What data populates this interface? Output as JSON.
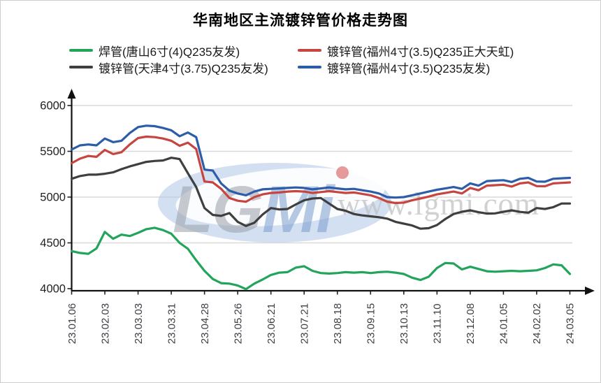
{
  "title": "华南地区主流镀锌管价格走势图",
  "watermark": {
    "logo": "LGMi",
    "url": "www.lgmi.com"
  },
  "axis": {
    "y_ticks": [
      4000,
      4500,
      5000,
      5500,
      6000
    ],
    "x_labels": [
      "23.01.06",
      "23.02.03",
      "23.03.03",
      "23.03.31",
      "23.04.28",
      "23.05.26",
      "23.06.21",
      "23.07.21",
      "23.08.18",
      "23.09.15",
      "23.10.13",
      "23.11.10",
      "23.12.08",
      "24.01.05",
      "24.02.02",
      "24.03.05"
    ]
  },
  "chart_data": {
    "type": "line",
    "title": "华南地区主流镀锌管价格走势图",
    "xlabel": "",
    "ylabel": "",
    "ylim": [
      4000,
      6000
    ],
    "grid": "horizontal",
    "legend_position": "top",
    "x_tick_labels": [
      "23.01.06",
      "23.02.03",
      "23.03.03",
      "23.03.31",
      "23.04.28",
      "23.05.26",
      "23.06.21",
      "23.07.21",
      "23.08.18",
      "23.09.15",
      "23.10.13",
      "23.11.10",
      "23.12.08",
      "24.01.05",
      "24.02.02",
      "24.03.05"
    ],
    "points_per_tick_interval": 4,
    "series": [
      {
        "name": "焊管(唐山6寸(4)Q235友发)",
        "color": "#22a45b",
        "values": [
          4410,
          4390,
          4380,
          4440,
          4620,
          4545,
          4590,
          4575,
          4610,
          4650,
          4665,
          4640,
          4600,
          4500,
          4435,
          4310,
          4195,
          4105,
          4060,
          4055,
          4035,
          3995,
          4055,
          4100,
          4150,
          4175,
          4180,
          4230,
          4245,
          4195,
          4170,
          4165,
          4170,
          4180,
          4175,
          4180,
          4170,
          4180,
          4185,
          4175,
          4160,
          4120,
          4095,
          4130,
          4225,
          4280,
          4275,
          4210,
          4240,
          4215,
          4190,
          4185,
          4190,
          4195,
          4190,
          4195,
          4200,
          4225,
          4265,
          4255,
          4160
        ]
      },
      {
        "name": "镀锌管(福州4寸(3.5)Q235正大天虹)",
        "color": "#c64540",
        "values": [
          5370,
          5420,
          5450,
          5440,
          5515,
          5470,
          5490,
          5575,
          5645,
          5660,
          5655,
          5640,
          5615,
          5560,
          5595,
          5525,
          5170,
          5160,
          5090,
          4990,
          4960,
          4950,
          5000,
          5030,
          5045,
          5050,
          5060,
          5065,
          5060,
          5045,
          5055,
          5065,
          5055,
          5045,
          5050,
          5035,
          5020,
          4990,
          4950,
          4935,
          4940,
          4965,
          4985,
          5005,
          5030,
          5045,
          5060,
          5040,
          5100,
          5075,
          5125,
          5130,
          5135,
          5115,
          5150,
          5160,
          5120,
          5118,
          5150,
          5155,
          5160
        ]
      },
      {
        "name": "镀锌管(天津4寸(3.75)Q235友发)",
        "color": "#3f3f3f",
        "values": [
          5200,
          5230,
          5245,
          5245,
          5255,
          5270,
          5305,
          5335,
          5360,
          5385,
          5395,
          5400,
          5430,
          5415,
          5260,
          5110,
          4880,
          4805,
          4795,
          4825,
          4730,
          4685,
          4720,
          4810,
          4880,
          4865,
          4870,
          4920,
          4965,
          4985,
          4990,
          4930,
          4870,
          4850,
          4815,
          4800,
          4790,
          4780,
          4765,
          4730,
          4710,
          4690,
          4655,
          4660,
          4695,
          4760,
          4815,
          4840,
          4855,
          4835,
          4820,
          4822,
          4840,
          4855,
          4838,
          4830,
          4880,
          4870,
          4890,
          4930,
          4930
        ]
      },
      {
        "name": "镀锌管(福州4寸(3.5)Q235友发)",
        "color": "#2d5da9",
        "values": [
          5520,
          5565,
          5575,
          5565,
          5640,
          5600,
          5615,
          5700,
          5765,
          5780,
          5775,
          5755,
          5730,
          5665,
          5705,
          5655,
          5300,
          5290,
          5150,
          5070,
          5040,
          5020,
          5060,
          5085,
          5090,
          5095,
          5100,
          5105,
          5100,
          5085,
          5095,
          5105,
          5095,
          5085,
          5090,
          5075,
          5060,
          5040,
          5000,
          4995,
          5000,
          5020,
          5040,
          5060,
          5080,
          5095,
          5110,
          5090,
          5150,
          5125,
          5175,
          5180,
          5185,
          5165,
          5200,
          5210,
          5170,
          5168,
          5200,
          5205,
          5210
        ]
      }
    ],
    "legend_order_note": "legend rows: [green, red] / [black, blue]"
  }
}
